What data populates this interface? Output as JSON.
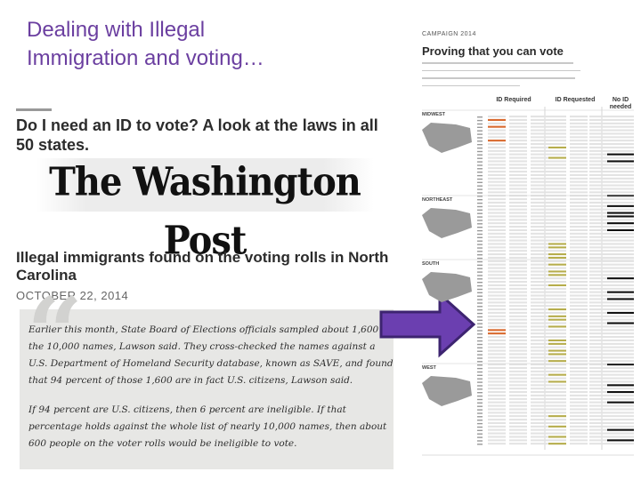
{
  "slide": {
    "title_line1": "Dealing with Illegal",
    "title_line2": "Immigration and voting…"
  },
  "article": {
    "headline1": "Do I need an ID to vote? A look at the laws in all 50 states.",
    "masthead": "The Washington Post",
    "headline2": "Illegal immigrants found on the voting rolls in North Carolina",
    "date": "OCTOBER 22, 2014",
    "quote_p1": "Earlier this month, State Board of Elections officials sampled about 1,600 of the 10,000 names, Lawson said. They cross-checked the names against a U.S. Department of Homeland Security database, known as SAVE, and found that 94 percent of those 1,600 are in fact U.S. citizens, Lawson said.",
    "quote_p2": "If 94 percent are U.S. citizens, then 6 percent are ineligible. If that percentage holds against the whole list of nearly 10,000 names, then about 600 people on the voter rolls would be ineligible to vote."
  },
  "infographic": {
    "kicker": "CAMPAIGN 2014",
    "title": "Proving that you can vote",
    "col_required": "ID Required",
    "col_requested": "ID Requested",
    "col_none_l1": "No ID",
    "col_none_l2": "needed",
    "regions": [
      "MIDWEST",
      "NORTHEAST",
      "SOUTH",
      "WEST"
    ],
    "colors": {
      "required": "#d9692e",
      "requested": "#b6ad4c",
      "none": "#111111",
      "empty": "#e3e3e3"
    },
    "rows": [
      "e",
      "r",
      "e",
      "r",
      "e",
      "e",
      "e",
      "r",
      "e",
      "q",
      "e",
      "n",
      "q",
      "n",
      "e",
      "e",
      "e",
      "e",
      "e",
      "e",
      "e",
      "e",
      "e",
      "n",
      "e",
      "e",
      "n",
      "e",
      "n",
      "n",
      "e",
      "n",
      "e",
      "n",
      "e",
      "e",
      "e",
      "q",
      "q",
      "e",
      "q",
      "q",
      "e",
      "q",
      "e",
      "q",
      "q",
      "n",
      "e",
      "q",
      "e",
      "n",
      "e",
      "n",
      "e",
      "e",
      "q",
      "n",
      "q",
      "q",
      "n",
      "q",
      "r",
      "r",
      "e",
      "q",
      "q",
      "e",
      "q",
      "q",
      "e",
      "q",
      "n",
      "e",
      "e",
      "q",
      "e",
      "q",
      "n",
      "e",
      "n",
      "e",
      "e",
      "n",
      "e",
      "e",
      "e",
      "q",
      "e",
      "e",
      "q",
      "n",
      "e",
      "q",
      "n",
      "q"
    ]
  }
}
